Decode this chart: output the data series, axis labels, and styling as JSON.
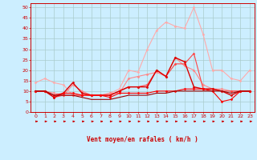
{
  "xlabel": "Vent moyen/en rafales ( km/h )",
  "bg_color": "#cceeff",
  "grid_color": "#aacccc",
  "ylim": [
    0,
    52
  ],
  "xlim": [
    -0.5,
    23.5
  ],
  "series": [
    {
      "color": "#ffaaaa",
      "lw": 0.8,
      "marker": "D",
      "ms": 1.5,
      "y": [
        14,
        16,
        14,
        13,
        8,
        8,
        8,
        8,
        9,
        11,
        20,
        19,
        30,
        39,
        43,
        41,
        40,
        50,
        37,
        20,
        20,
        16,
        15,
        20
      ]
    },
    {
      "color": "#ff8888",
      "lw": 0.8,
      "marker": "D",
      "ms": 1.5,
      "y": [
        10,
        10,
        9,
        8,
        13,
        10,
        8,
        8,
        9,
        9,
        16,
        17,
        18,
        19,
        17,
        26,
        22,
        20,
        13,
        11,
        11,
        10,
        10,
        10
      ]
    },
    {
      "color": "#ff4444",
      "lw": 0.8,
      "marker": "D",
      "ms": 1.5,
      "y": [
        10,
        10,
        7,
        8,
        8,
        8,
        8,
        8,
        8,
        10,
        12,
        12,
        13,
        20,
        17,
        23,
        23,
        28,
        11,
        11,
        10,
        10,
        10,
        10
      ]
    },
    {
      "color": "#dd0000",
      "lw": 1.0,
      "marker": "D",
      "ms": 1.5,
      "y": [
        10,
        10,
        7,
        9,
        14,
        9,
        8,
        8,
        8,
        10,
        12,
        12,
        12,
        20,
        17,
        26,
        24,
        12,
        11,
        11,
        10,
        8,
        10,
        10
      ]
    },
    {
      "color": "#ff0000",
      "lw": 0.8,
      "marker": "D",
      "ms": 1.5,
      "y": [
        10,
        10,
        8,
        9,
        9,
        8,
        8,
        8,
        7,
        9,
        9,
        9,
        9,
        10,
        10,
        10,
        11,
        11,
        11,
        10,
        5,
        6,
        10,
        10
      ]
    },
    {
      "color": "#990000",
      "lw": 0.8,
      "marker": null,
      "ms": 0,
      "y": [
        10,
        10,
        8,
        8,
        8,
        7,
        6,
        6,
        6,
        7,
        8,
        8,
        8,
        9,
        9,
        10,
        10,
        10,
        10,
        10,
        10,
        9,
        10,
        10
      ]
    }
  ],
  "tick_color": "#cc0000",
  "axis_color": "#cc0000",
  "label_color": "#cc0000"
}
